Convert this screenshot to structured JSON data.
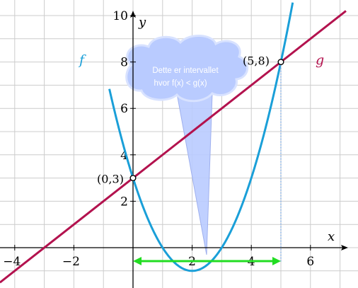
{
  "chart_data": {
    "type": "line",
    "xlim": [
      -4.5,
      7.2
    ],
    "ylim": [
      -1.6,
      10
    ],
    "grid": true,
    "axes": {
      "xlabel": "x",
      "ylabel": "y"
    },
    "x_tick_labels": [
      "−4",
      "−2",
      "2",
      "4",
      "6"
    ],
    "x_ticks": [
      -4,
      -2,
      2,
      4,
      6
    ],
    "y_tick_labels": [
      "2",
      "4",
      "6",
      "8",
      "10"
    ],
    "y_ticks": [
      2,
      4,
      6,
      8,
      10
    ],
    "series": [
      {
        "name": "f",
        "color": "#1a9fd8",
        "expression": "f(x) = (x - 2)^2 - 1",
        "sample_x": [
          -0.5,
          0,
          1,
          2,
          3,
          4,
          5,
          5.3
        ],
        "sample_y": [
          5.25,
          3,
          0,
          -1,
          0,
          3,
          8,
          9.89
        ]
      },
      {
        "name": "g",
        "color": "#b3124e",
        "expression": "g(x) = x + 3",
        "sample_x": [
          -4.5,
          -3,
          0,
          5,
          7.2
        ],
        "sample_y": [
          -1.5,
          0,
          3,
          8,
          10.2
        ]
      }
    ],
    "points": [
      {
        "label": "(0,3)",
        "x": 0,
        "y": 3
      },
      {
        "label": "(5,8)",
        "x": 5,
        "y": 8
      }
    ],
    "interval": {
      "from": 0,
      "to": 5,
      "color": "#22dd22"
    },
    "callout": {
      "lines": [
        "Dette er intervallet",
        "hvor f(x) < g(x)"
      ],
      "fill": "#b9cbff"
    }
  }
}
